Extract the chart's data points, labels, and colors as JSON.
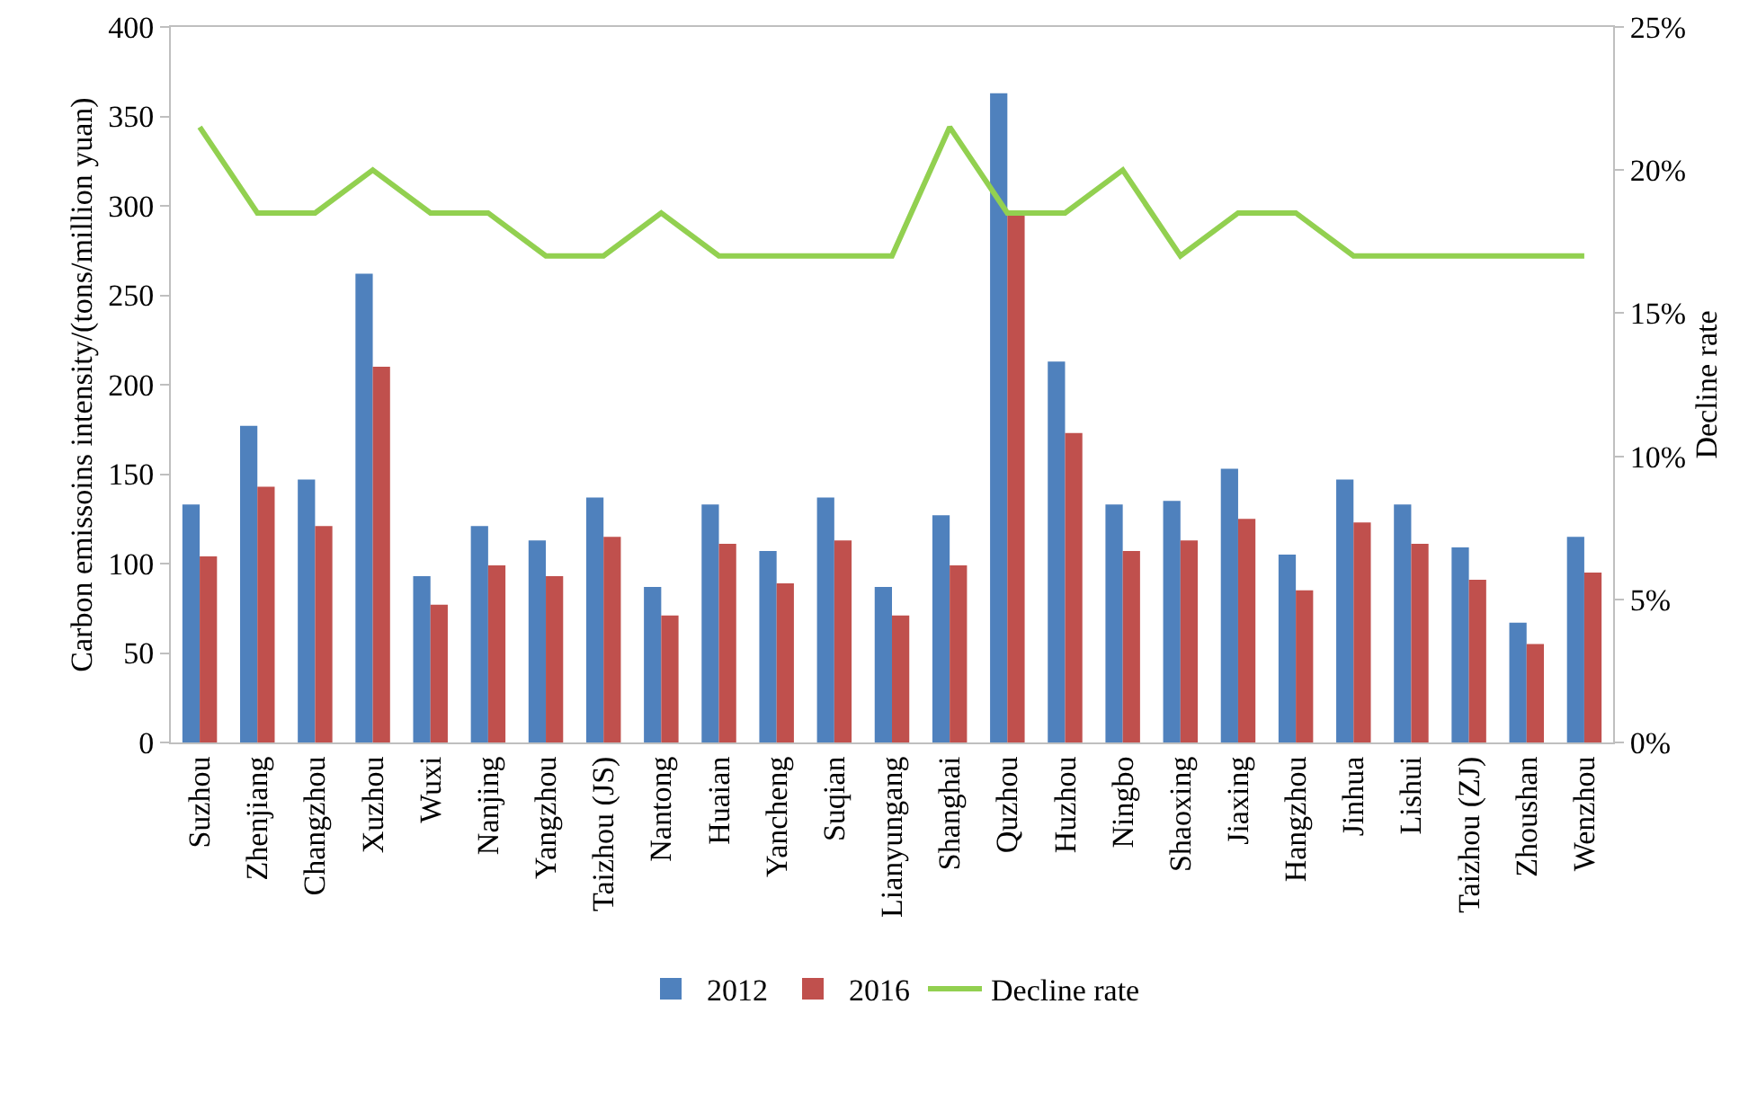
{
  "chart_data": {
    "type": "bar",
    "ylabel": "Carbon emissoins intensity/(tons/million yuan)",
    "y2label": "Decline rate",
    "categories": [
      "Suzhou",
      "Zhenjiang",
      "Changzhou",
      "Xuzhou",
      "Wuxi",
      "Nanjing",
      "Yangzhou",
      "Taizhou (JS)",
      "Nantong",
      "Huaian",
      "Yancheng",
      "Suqian",
      "Lianyungang",
      "Shanghai",
      "Quzhou",
      "Huzhou",
      "Ningbo",
      "Shaoxing",
      "Jiaxing",
      "Hangzhou",
      "Jinhua",
      "Lishui",
      "Taizhou (ZJ)",
      "Zhoushan",
      "Wenzhou"
    ],
    "series": [
      {
        "name": "2012",
        "color": "#4f81bd",
        "values": [
          133,
          177,
          147,
          262,
          93,
          121,
          113,
          137,
          87,
          133,
          107,
          137,
          87,
          127,
          363,
          213,
          133,
          135,
          153,
          105,
          147,
          133,
          109,
          67,
          115
        ]
      },
      {
        "name": "2016",
        "color": "#c0504d",
        "values": [
          104,
          143,
          121,
          210,
          77,
          99,
          93,
          115,
          71,
          111,
          89,
          113,
          71,
          99,
          296,
          173,
          107,
          113,
          125,
          85,
          123,
          111,
          91,
          55,
          95
        ]
      },
      {
        "name": "Decline rate",
        "type": "line",
        "axis": "y2",
        "color": "#92d050",
        "values": [
          21.5,
          18.5,
          18.5,
          20,
          18.5,
          18.5,
          17,
          17,
          18.5,
          17,
          17,
          17,
          17,
          21.5,
          18.5,
          18.5,
          20,
          17,
          18.5,
          18.5,
          17,
          17,
          17,
          17,
          17
        ]
      }
    ],
    "ylim": [
      0,
      400
    ],
    "yticks": [
      0,
      50,
      100,
      150,
      200,
      250,
      300,
      350,
      400
    ],
    "y2lim": [
      0,
      25
    ],
    "y2ticks": [
      {
        "value": 0,
        "label": "0%"
      },
      {
        "value": 5,
        "label": "5%"
      },
      {
        "value": 10,
        "label": "10%"
      },
      {
        "value": 15,
        "label": "15%"
      },
      {
        "value": 20,
        "label": "20%"
      },
      {
        "value": 25,
        "label": "25%"
      }
    ],
    "grid": false,
    "legend": "bottom",
    "marker": "none",
    "line_style": "solid"
  }
}
